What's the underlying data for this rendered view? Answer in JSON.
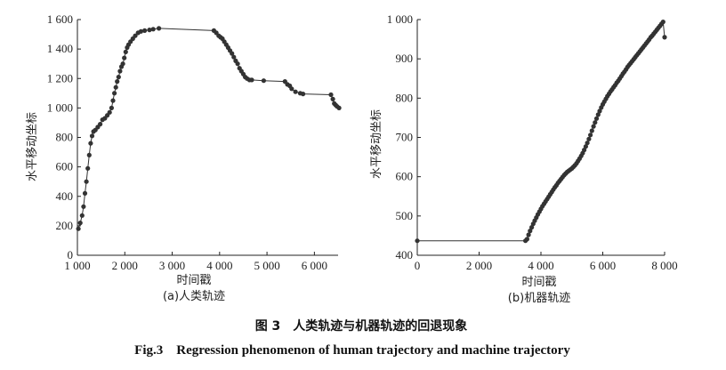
{
  "figure": {
    "caption_cn": "图 3　人类轨迹与机器轨迹的回退现象",
    "caption_en": "Fig.3　Regression phenomenon of human trajectory and machine trajectory"
  },
  "chart_data": [
    {
      "type": "line",
      "subtitle": "(a)人类轨迹",
      "xlabel": "时间戳",
      "ylabel": "水平移动坐标",
      "xlim": [
        1000,
        6500
      ],
      "ylim": [
        0,
        1600
      ],
      "xticks": [
        1000,
        2000,
        3000,
        4000,
        5000,
        6000
      ],
      "xtick_labels": [
        "1 000",
        "2 000",
        "3 000",
        "4 000",
        "5 000",
        "6 000"
      ],
      "yticks": [
        0,
        200,
        400,
        600,
        800,
        1000,
        1200,
        1400,
        1600
      ],
      "ytick_labels": [
        "0",
        "200",
        "400",
        "600",
        "800",
        "1 000",
        "1 200",
        "1 400",
        "1 600"
      ],
      "grid": false,
      "color": "#333333",
      "series": [
        {
          "x": [
            1020,
            1060,
            1100,
            1130,
            1160,
            1190,
            1220,
            1250,
            1280,
            1310,
            1340,
            1380,
            1430,
            1480,
            1530,
            1580,
            1630,
            1680,
            1720,
            1750,
            1780,
            1810,
            1840,
            1870,
            1900,
            1930,
            1960,
            1990,
            2020,
            2050,
            2080,
            2120,
            2170,
            2220,
            2280,
            2340,
            2420,
            2520,
            2600,
            2720,
            3880,
            3930,
            3980,
            4020,
            4060,
            4100,
            4140,
            4180,
            4220,
            4260,
            4300,
            4340,
            4380,
            4420,
            4460,
            4500,
            4540,
            4580,
            4630,
            4680,
            4930,
            5380,
            5430,
            5480,
            5520,
            5600,
            5700,
            5760,
            6350,
            6390,
            6420,
            6450,
            6480,
            6520
          ],
          "y": [
            180,
            220,
            270,
            330,
            420,
            500,
            590,
            680,
            760,
            810,
            840,
            850,
            870,
            890,
            920,
            930,
            950,
            970,
            1000,
            1050,
            1100,
            1140,
            1180,
            1210,
            1250,
            1280,
            1300,
            1340,
            1380,
            1410,
            1430,
            1450,
            1470,
            1490,
            1510,
            1520,
            1525,
            1530,
            1535,
            1540,
            1525,
            1510,
            1490,
            1480,
            1470,
            1450,
            1430,
            1410,
            1390,
            1370,
            1345,
            1320,
            1300,
            1270,
            1250,
            1230,
            1210,
            1200,
            1190,
            1190,
            1185,
            1180,
            1160,
            1150,
            1130,
            1110,
            1100,
            1095,
            1090,
            1060,
            1030,
            1020,
            1010,
            1000
          ]
        }
      ]
    },
    {
      "type": "line",
      "subtitle": "(b)机器轨迹",
      "xlabel": "时间戳",
      "ylabel": "水平移动坐标",
      "xlim": [
        0,
        8000
      ],
      "ylim": [
        400,
        1000
      ],
      "xticks": [
        0,
        2000,
        4000,
        6000,
        8000
      ],
      "xtick_labels": [
        "0",
        "2 000",
        "4 000",
        "6 000",
        "8 000"
      ],
      "yticks": [
        400,
        500,
        600,
        700,
        800,
        900,
        1000
      ],
      "ytick_labels": [
        "400",
        "500",
        "600",
        "700",
        "800",
        "900",
        "1 000"
      ],
      "grid": false,
      "color": "#333333",
      "series": [
        {
          "x": [
            0,
            3500,
            3550,
            3600,
            3650,
            3700,
            3750,
            3800,
            3850,
            3900,
            3950,
            4000,
            4050,
            4100,
            4150,
            4200,
            4250,
            4300,
            4350,
            4400,
            4450,
            4500,
            4550,
            4600,
            4650,
            4700,
            4750,
            4800,
            4850,
            4900,
            4950,
            5000,
            5050,
            5100,
            5150,
            5200,
            5250,
            5300,
            5350,
            5400,
            5450,
            5500,
            5550,
            5600,
            5650,
            5700,
            5750,
            5800,
            5850,
            5900,
            5950,
            6000,
            6050,
            6100,
            6150,
            6200,
            6250,
            6300,
            6350,
            6400,
            6450,
            6500,
            6550,
            6600,
            6650,
            6700,
            6750,
            6800,
            6850,
            6900,
            6950,
            7000,
            7050,
            7100,
            7150,
            7200,
            7250,
            7300,
            7350,
            7400,
            7450,
            7500,
            7550,
            7600,
            7650,
            7700,
            7750,
            7800,
            7850,
            7900,
            7950,
            8000
          ],
          "y": [
            437,
            437,
            441,
            452,
            462,
            471,
            480,
            488,
            496,
            504,
            511,
            518,
            525,
            531,
            537,
            543,
            549,
            555,
            561,
            567,
            573,
            578,
            584,
            589,
            594,
            599,
            604,
            608,
            612,
            615,
            618,
            621,
            625,
            629,
            634,
            640,
            646,
            653,
            660,
            668,
            677,
            686,
            696,
            706,
            717,
            728,
            738,
            748,
            758,
            767,
            776,
            784,
            791,
            798,
            805,
            811,
            817,
            822,
            828,
            833,
            839,
            844,
            850,
            856,
            862,
            867,
            873,
            879,
            884,
            889,
            894,
            899,
            904,
            909,
            914,
            919,
            924,
            929,
            934,
            939,
            944,
            949,
            955,
            959,
            964,
            969,
            974,
            979,
            984,
            989,
            994,
            955
          ]
        }
      ]
    }
  ]
}
